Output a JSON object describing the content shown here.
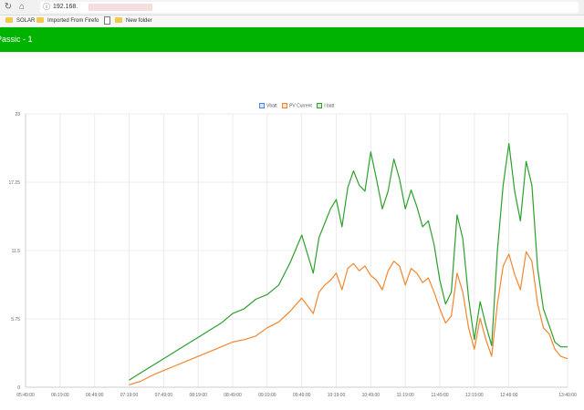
{
  "browser": {
    "address_text": "192.168.",
    "bookmarks": [
      "SOLAR",
      "Imported From Firefo",
      "",
      "New folder"
    ]
  },
  "header": {
    "title": "Passic - 1"
  },
  "chart_data": {
    "type": "line",
    "title": "",
    "xlabel": "",
    "ylabel": "",
    "ylim": [
      0,
      23
    ],
    "y_ticks": [
      "0",
      "5.75",
      "11.5",
      "17.25",
      "23"
    ],
    "x_ticks": [
      "05:49:00",
      "06:19:00",
      "06:49:00",
      "07:19:00",
      "07:49:00",
      "08:19:00",
      "08:49:00",
      "09:19:00",
      "09:49:00",
      "10:19:00",
      "10:49:00",
      "11:19:00",
      "11:49:00",
      "12:19:00",
      "12:49:00",
      "13:40:00"
    ],
    "legend_position": "top-center",
    "grid": true,
    "series": [
      {
        "name": "Vbatt",
        "color": "#4a86e8",
        "x": [],
        "values": []
      },
      {
        "name": "PV Current",
        "color": "#f2862f",
        "x": [
          "07:19",
          "07:29",
          "07:39",
          "07:49",
          "07:59",
          "08:09",
          "08:19",
          "08:29",
          "08:39",
          "08:49",
          "08:59",
          "09:09",
          "09:19",
          "09:29",
          "09:39",
          "09:49",
          "09:59",
          "10:04",
          "10:09",
          "10:14",
          "10:19",
          "10:24",
          "10:29",
          "10:34",
          "10:39",
          "10:44",
          "10:49",
          "10:54",
          "10:59",
          "11:04",
          "11:09",
          "11:14",
          "11:19",
          "11:24",
          "11:29",
          "11:34",
          "11:39",
          "11:44",
          "11:49",
          "11:54",
          "11:59",
          "12:04",
          "12:09",
          "12:14",
          "12:19",
          "12:24",
          "12:29",
          "12:34",
          "12:39",
          "12:44",
          "12:49",
          "12:54",
          "12:59",
          "13:04",
          "13:09",
          "13:14",
          "13:19",
          "13:24",
          "13:29",
          "13:34",
          "13:40"
        ],
        "values": [
          0.2,
          0.5,
          1.0,
          1.4,
          1.8,
          2.2,
          2.6,
          3.0,
          3.4,
          3.8,
          4.0,
          4.3,
          5.0,
          5.5,
          6.4,
          7.5,
          6.2,
          8.0,
          8.6,
          9.0,
          9.6,
          8.2,
          10.0,
          10.4,
          9.8,
          10.2,
          9.4,
          9.0,
          8.2,
          9.8,
          10.6,
          10.2,
          8.6,
          10.0,
          9.6,
          8.8,
          9.2,
          8.0,
          6.6,
          5.4,
          6.0,
          9.6,
          8.0,
          5.0,
          3.2,
          5.8,
          4.0,
          2.6,
          7.0,
          10.2,
          11.2,
          9.5,
          8.2,
          11.4,
          10.6,
          7.0,
          5.0,
          4.5,
          3.2,
          2.6,
          2.4
        ]
      },
      {
        "name": "I batt",
        "color": "#2ca02c",
        "x": [
          "07:19",
          "07:29",
          "07:39",
          "07:49",
          "07:59",
          "08:09",
          "08:19",
          "08:29",
          "08:39",
          "08:49",
          "08:59",
          "09:09",
          "09:19",
          "09:29",
          "09:39",
          "09:49",
          "09:59",
          "10:04",
          "10:09",
          "10:14",
          "10:19",
          "10:24",
          "10:29",
          "10:34",
          "10:39",
          "10:44",
          "10:49",
          "10:54",
          "10:59",
          "11:04",
          "11:09",
          "11:14",
          "11:19",
          "11:24",
          "11:29",
          "11:34",
          "11:39",
          "11:44",
          "11:49",
          "11:54",
          "11:59",
          "12:04",
          "12:09",
          "12:14",
          "12:19",
          "12:24",
          "12:29",
          "12:34",
          "12:39",
          "12:44",
          "12:49",
          "12:54",
          "12:59",
          "13:04",
          "13:09",
          "13:14",
          "13:19",
          "13:24",
          "13:29",
          "13:34",
          "13:40"
        ],
        "values": [
          0.6,
          1.2,
          1.8,
          2.4,
          3.0,
          3.6,
          4.2,
          4.8,
          5.4,
          6.2,
          6.6,
          7.4,
          7.8,
          8.6,
          10.5,
          12.8,
          9.6,
          12.6,
          13.8,
          15.0,
          15.8,
          13.5,
          16.8,
          18.2,
          17.0,
          16.5,
          19.8,
          17.5,
          15.0,
          16.5,
          19.2,
          17.5,
          15.0,
          16.6,
          15.2,
          13.5,
          14.0,
          12.0,
          9.0,
          7.0,
          8.0,
          14.5,
          12.5,
          7.5,
          4.0,
          7.2,
          5.2,
          3.5,
          11.5,
          17.0,
          20.5,
          16.5,
          14.0,
          19.0,
          17.0,
          10.0,
          6.6,
          5.2,
          3.8,
          3.4,
          3.4
        ]
      }
    ]
  }
}
